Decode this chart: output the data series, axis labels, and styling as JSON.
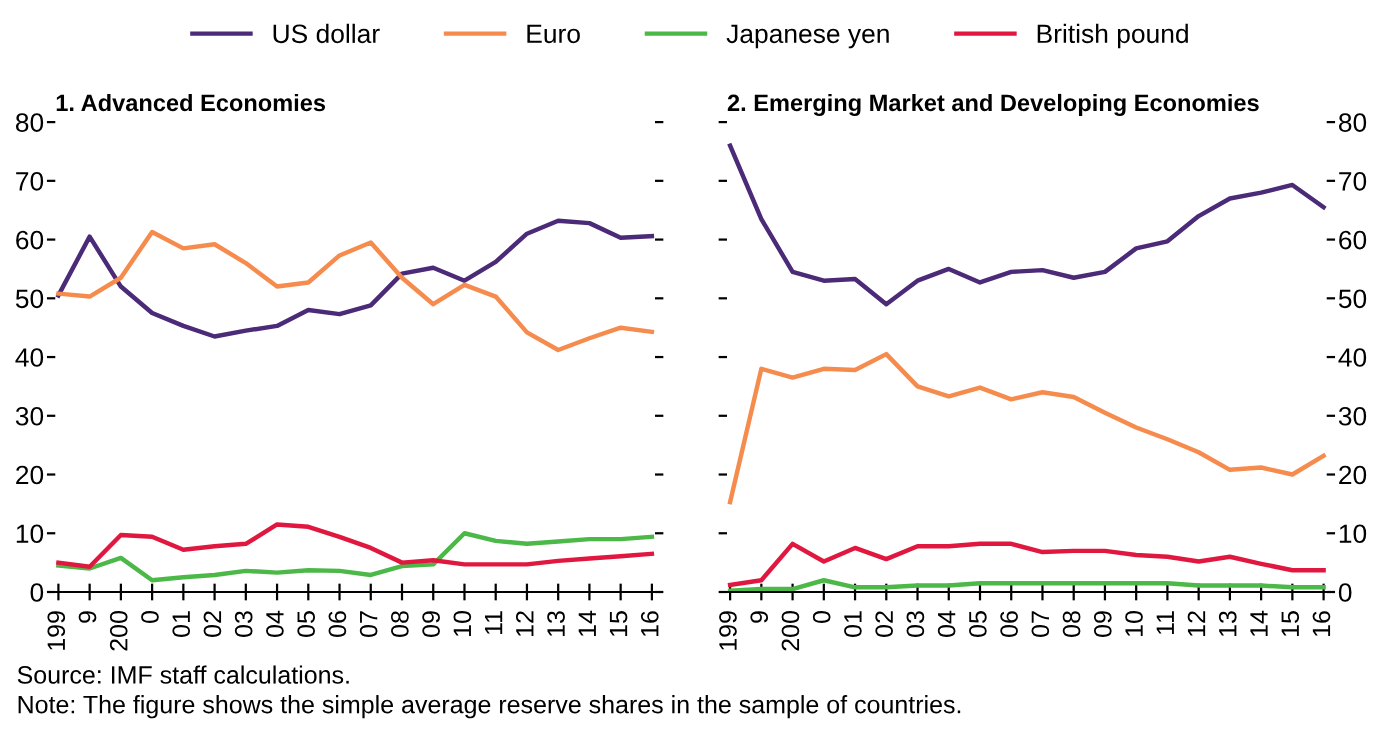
{
  "chart_data": [
    {
      "type": "line",
      "title": "1. Advanced Economies",
      "legend": "top",
      "grid": false,
      "marker": "none",
      "line_style": "solid",
      "categories": [
        "199",
        "9",
        "200",
        "0",
        "01",
        "02",
        "03",
        "04",
        "05",
        "06",
        "07",
        "08",
        "09",
        "10",
        "11",
        "12",
        "13",
        "14",
        "15",
        "16"
      ],
      "ylim": [
        0,
        80
      ],
      "yticks": [
        0,
        10,
        20,
        30,
        40,
        50,
        60,
        70,
        80
      ],
      "series": [
        {
          "name": "US dollar",
          "color": "#4b2a77",
          "values": [
            50.5,
            60.5,
            52,
            47.5,
            45.3,
            43.5,
            44.5,
            45.3,
            48,
            47.3,
            48.8,
            54.2,
            55.2,
            53,
            56.2,
            61,
            63.2,
            62.8,
            60.3,
            60.6
          ]
        },
        {
          "name": "Euro",
          "color": "#f58c4e",
          "values": [
            50.8,
            50.3,
            53.5,
            61.3,
            58.5,
            59.2,
            56,
            52,
            52.7,
            57.3,
            59.5,
            53.5,
            49,
            52.3,
            50.3,
            44.2,
            41.2,
            43.2,
            45,
            44.3
          ]
        },
        {
          "name": "Japanese yen",
          "color": "#4cb848",
          "values": [
            4.5,
            4,
            5.8,
            2,
            2.5,
            2.9,
            3.6,
            3.3,
            3.7,
            3.6,
            2.9,
            4.4,
            4.7,
            10,
            8.7,
            8.2,
            8.6,
            9,
            9,
            9.4
          ]
        },
        {
          "name": "British pound",
          "color": "#e0173f",
          "values": [
            5,
            4.3,
            9.7,
            9.4,
            7.2,
            7.8,
            8.2,
            11.5,
            11.1,
            9.4,
            7.5,
            5,
            5.4,
            4.7,
            4.7,
            4.7,
            5.3,
            5.7,
            6.1,
            6.5
          ]
        }
      ],
      "annotations": [
        "Source: IMF staff calculations.",
        "Note: The figure shows the simple average reserve shares in the sample of countries."
      ]
    },
    {
      "type": "line",
      "title": "2. Emerging Market and Developing Economies",
      "grid": false,
      "marker": "none",
      "line_style": "solid",
      "categories": [
        "199",
        "9",
        "200",
        "0",
        "01",
        "02",
        "03",
        "04",
        "05",
        "06",
        "07",
        "08",
        "09",
        "10",
        "11",
        "12",
        "13",
        "14",
        "15",
        "16"
      ],
      "ylim": [
        0,
        80
      ],
      "yticks": [
        0,
        10,
        20,
        30,
        40,
        50,
        60,
        70,
        80
      ],
      "series": [
        {
          "name": "US dollar",
          "color": "#4b2a77",
          "values": [
            76,
            63.5,
            54.5,
            53,
            53.3,
            49,
            53,
            55,
            52.7,
            54.5,
            54.8,
            53.5,
            54.5,
            58.5,
            59.7,
            64,
            67,
            68,
            69.3,
            65.5
          ]
        },
        {
          "name": "Euro",
          "color": "#f58c4e",
          "values": [
            15.3,
            38,
            36.5,
            38,
            37.8,
            40.5,
            35,
            33.3,
            34.8,
            32.8,
            34,
            33.2,
            30.5,
            28,
            26,
            23.8,
            20.8,
            21.2,
            20,
            23.2
          ]
        },
        {
          "name": "Japanese yen",
          "color": "#4cb848",
          "values": [
            0.2,
            0.5,
            0.5,
            2,
            0.8,
            0.8,
            1.1,
            1.1,
            1.5,
            1.5,
            1.5,
            1.5,
            1.5,
            1.5,
            1.5,
            1.1,
            1.1,
            1.1,
            0.8,
            0.8
          ]
        },
        {
          "name": "British pound",
          "color": "#e0173f",
          "values": [
            1.2,
            2,
            8.2,
            5.2,
            7.5,
            5.6,
            7.8,
            7.8,
            8.2,
            8.2,
            6.8,
            7,
            7,
            6.3,
            6,
            5.2,
            6,
            4.8,
            3.7,
            3.7
          ]
        }
      ]
    }
  ]
}
